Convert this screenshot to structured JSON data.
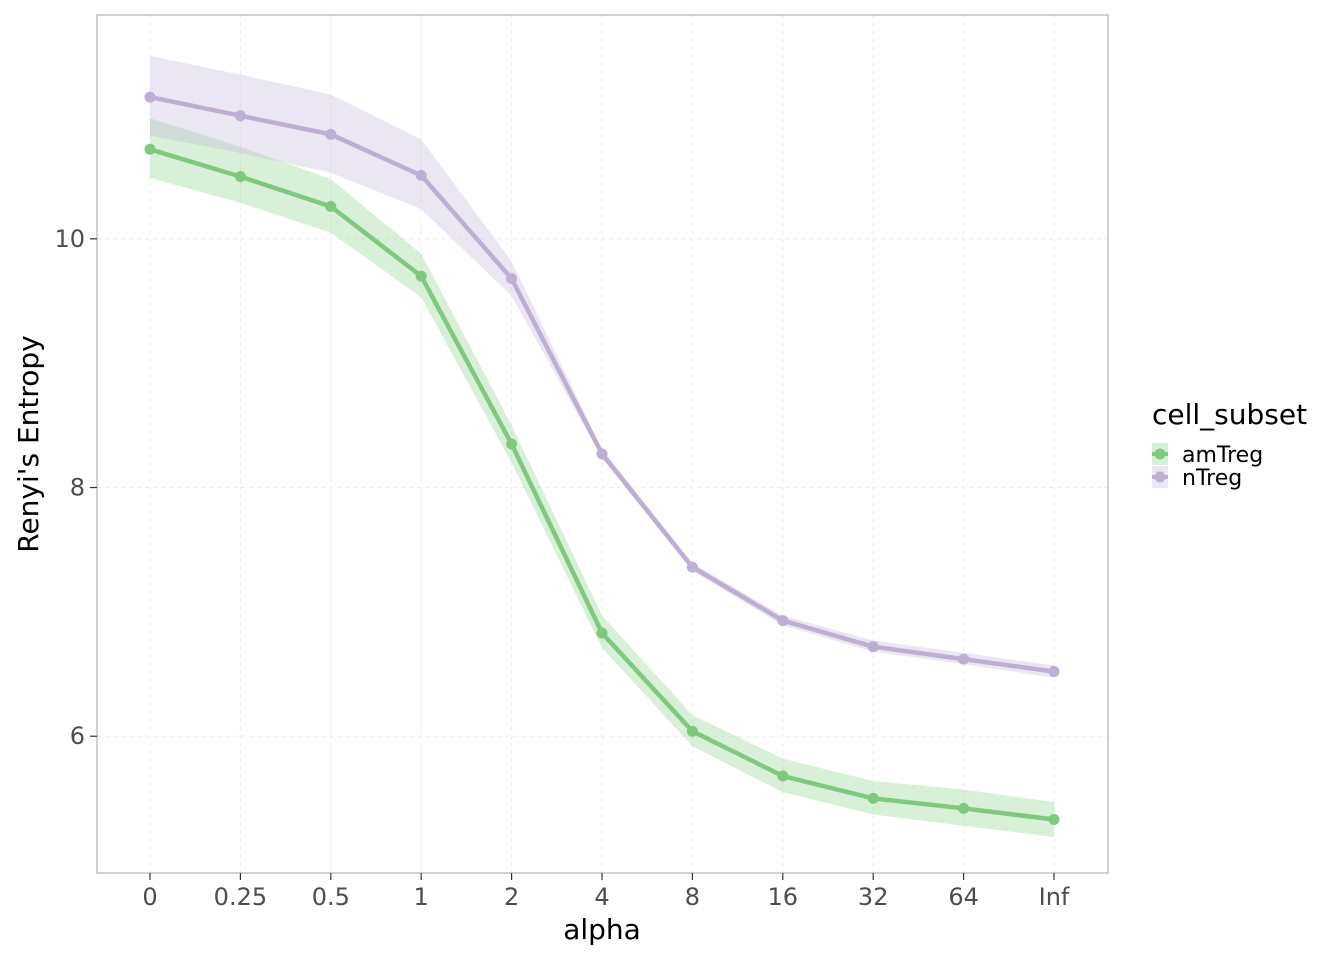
{
  "chart_data": {
    "type": "line",
    "xlabel": "alpha",
    "ylabel": "Renyi's Entropy",
    "categories": [
      "0",
      "0.25",
      "0.5",
      "1",
      "2",
      "4",
      "8",
      "16",
      "32",
      "64",
      "Inf"
    ],
    "ylim": [
      4.9,
      11.8
    ],
    "yticks": [
      6,
      8,
      10
    ],
    "grid": true,
    "legend": {
      "title": "cell_subset",
      "placement": "right"
    },
    "series": [
      {
        "name": "amTreg",
        "color": "#7fc97f",
        "values": [
          10.72,
          10.5,
          10.26,
          9.7,
          8.35,
          6.83,
          6.04,
          5.68,
          5.5,
          5.42,
          5.33
        ],
        "lower": [
          10.49,
          10.29,
          10.05,
          9.53,
          8.2,
          6.71,
          5.92,
          5.55,
          5.37,
          5.28,
          5.19
        ],
        "upper": [
          10.97,
          10.74,
          10.48,
          9.88,
          8.5,
          6.97,
          6.17,
          5.82,
          5.64,
          5.57,
          5.47
        ]
      },
      {
        "name": "nTreg",
        "color": "#beaed4",
        "values": [
          11.14,
          10.99,
          10.84,
          10.51,
          9.68,
          8.27,
          7.36,
          6.93,
          6.72,
          6.62,
          6.52
        ],
        "lower": [
          10.83,
          10.69,
          10.53,
          10.24,
          9.54,
          8.24,
          7.33,
          6.89,
          6.68,
          6.58,
          6.47
        ],
        "upper": [
          11.47,
          11.32,
          11.16,
          10.8,
          9.82,
          8.31,
          7.39,
          6.97,
          6.77,
          6.67,
          6.57
        ]
      }
    ]
  }
}
